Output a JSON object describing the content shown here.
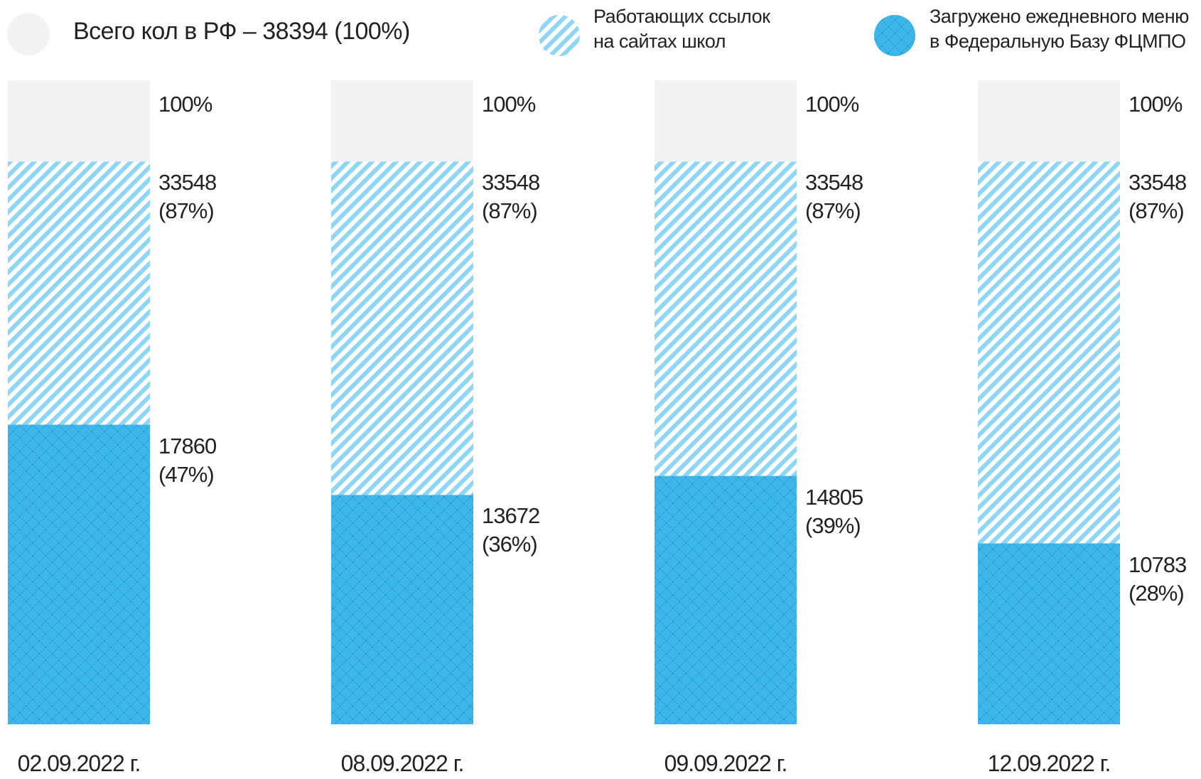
{
  "chart_data": {
    "type": "bar",
    "categories": [
      "02.09.2022 г.",
      "08.09.2022 г.",
      "09.09.2022 г.",
      "12.09.2022 г."
    ],
    "series": [
      {
        "name": "Всего кол в РФ – 38394 (100%)",
        "color": "#f2f2f2",
        "pattern": "solid",
        "values": [
          38394,
          38394,
          38394,
          38394
        ],
        "value_labels": [
          "100%",
          "100%",
          "100%",
          "100%"
        ]
      },
      {
        "name": "Работающих ссылок на сайтах школ",
        "color": "#8ed6f4",
        "pattern": "stripes",
        "values": [
          33548,
          33548,
          33548,
          33548
        ],
        "value_labels": [
          "33548 (87%)",
          "33548 (87%)",
          "33548 (87%)",
          "33548 (87%)"
        ]
      },
      {
        "name": "Загружено ежедневного меню в Федеральную Базу ФЦМПО",
        "color": "#3db7e9",
        "pattern": "crosshatch",
        "values": [
          17860,
          13672,
          14805,
          10783
        ],
        "value_labels": [
          "17860 (47%)",
          "13672 (36%)",
          "14805 (39%)",
          "10783 (28%)"
        ]
      }
    ]
  }
}
